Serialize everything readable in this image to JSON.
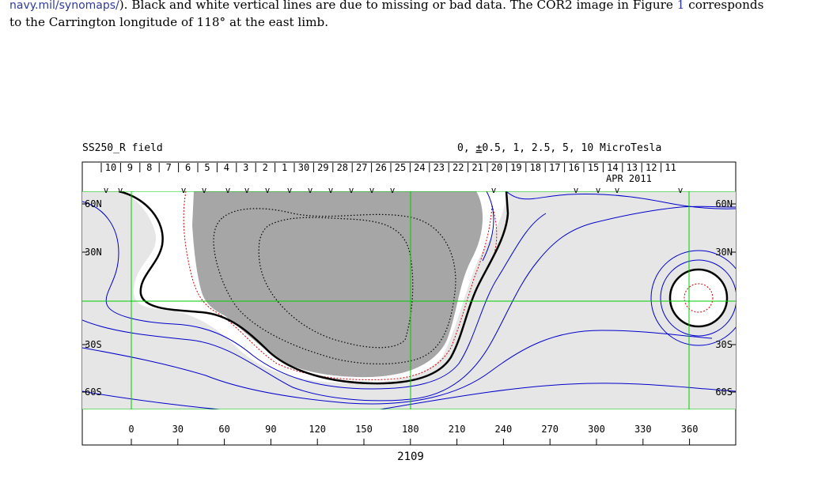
{
  "paragraph": {
    "line1_prefix": "",
    "line1_link": "navy.mil/synomaps/",
    "line1_mid": "). Black and white vertical lines are due to missing or bad data. The COR2 image in Figure ",
    "line1_ref": "1",
    "line1_suffix": " corresponds",
    "line2": "to the Carrington longitude of 118° at the east limb."
  },
  "figure": {
    "title_left": "SS250_R field",
    "title_right_pre": "0, ",
    "title_right_pm": "±",
    "title_right_post": "0.5, 1, 2.5, 5, 10 MicroTesla",
    "dates": [
      "10",
      "9",
      "8",
      "7",
      "6",
      "5",
      "4",
      "3",
      "2",
      "1",
      "30",
      "29",
      "28",
      "27",
      "26",
      "25",
      "24",
      "23",
      "22",
      "21",
      "20",
      "19",
      "18",
      "17",
      "16",
      "15",
      "14",
      "13",
      "12",
      "11"
    ],
    "month_label": "APR 2011",
    "lat_labels_left": [
      "60N",
      "30N",
      "30S",
      "60S"
    ],
    "lat_labels_right": [
      "60N",
      "30N",
      "30S",
      "60S"
    ],
    "lon_ticks": [
      "0",
      "30",
      "60",
      "90",
      "120",
      "150",
      "180",
      "210",
      "240",
      "270",
      "300",
      "330",
      "360"
    ],
    "rotation_label": "2109",
    "colors": {
      "grid": "#00cc00",
      "contour_blue": "#0000cc",
      "neutral_line": "#000000",
      "red_dotted": "#cc0000",
      "positive_fill": "#a6a6a6",
      "negative_fill": "#e6e6e6"
    }
  }
}
